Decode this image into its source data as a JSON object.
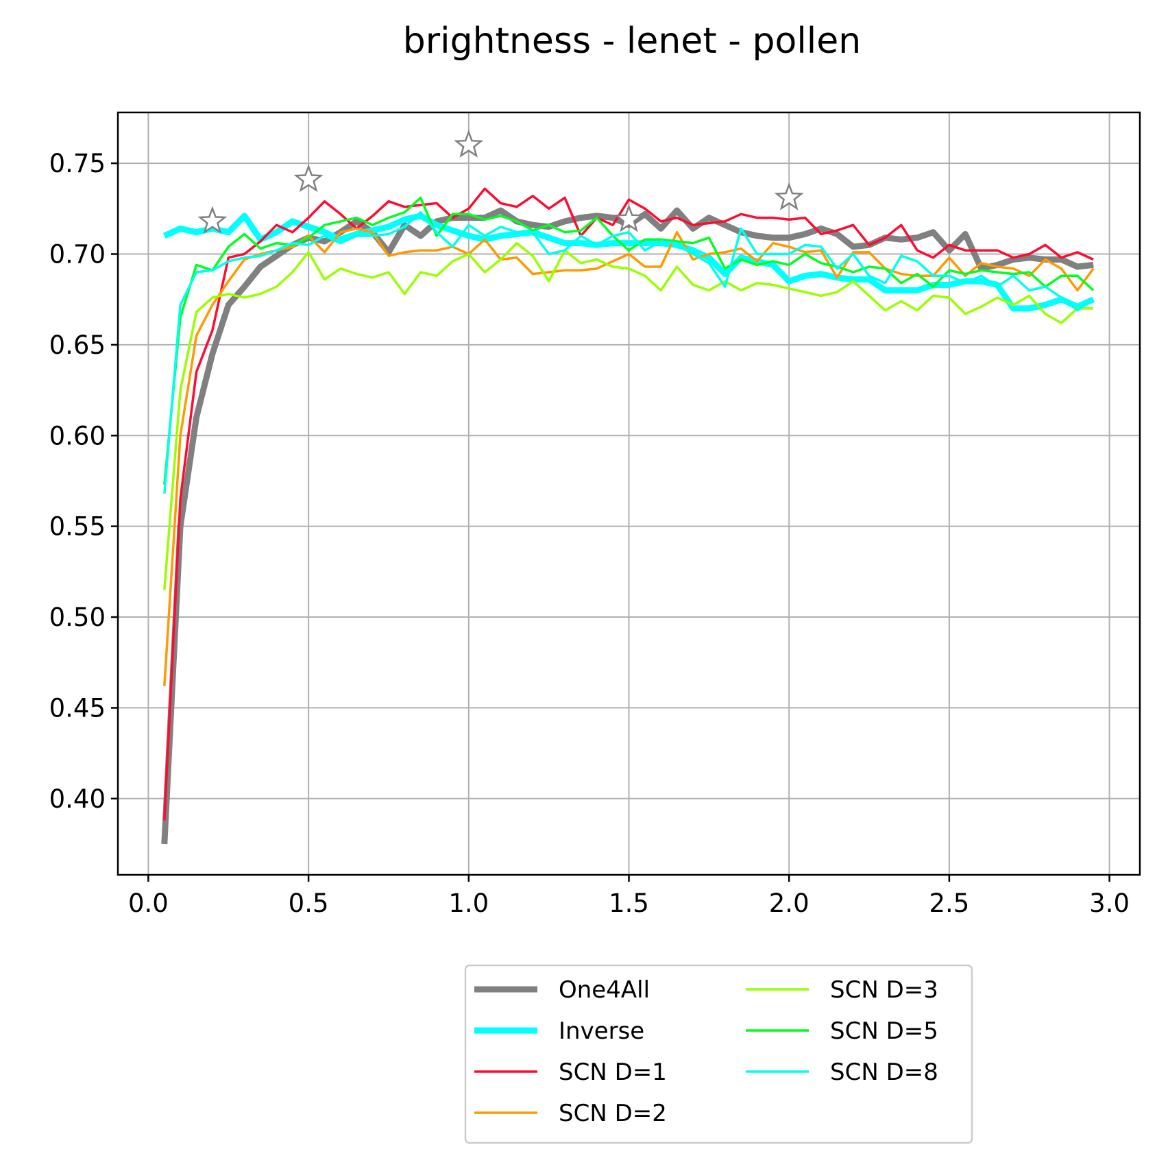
{
  "chart_data": {
    "type": "line",
    "title": "brightness - lenet - pollen",
    "xlabel": "",
    "ylabel": "",
    "xlim": [
      -0.095,
      3.095
    ],
    "ylim": [
      0.358,
      0.778
    ],
    "xticks": [
      0.0,
      0.5,
      1.0,
      1.5,
      2.0,
      2.5,
      3.0
    ],
    "yticks": [
      0.4,
      0.45,
      0.5,
      0.55,
      0.6,
      0.65,
      0.7,
      0.75
    ],
    "x": [
      0.05,
      0.1,
      0.15,
      0.2,
      0.25,
      0.3,
      0.35,
      0.4,
      0.45,
      0.5,
      0.55,
      0.6,
      0.65,
      0.7,
      0.75,
      0.8,
      0.85,
      0.9,
      0.95,
      1.0,
      1.05,
      1.1,
      1.15,
      1.2,
      1.25,
      1.3,
      1.35,
      1.4,
      1.45,
      1.5,
      1.55,
      1.6,
      1.65,
      1.7,
      1.75,
      1.8,
      1.85,
      1.9,
      1.95,
      2.0,
      2.05,
      2.1,
      2.15,
      2.2,
      2.25,
      2.3,
      2.35,
      2.4,
      2.45,
      2.5,
      2.55,
      2.6,
      2.65,
      2.7,
      2.75,
      2.8,
      2.85,
      2.9,
      2.95
    ],
    "grid": true,
    "legend_position": "bottom-center",
    "series": [
      {
        "name": "One4All",
        "color": "#808080",
        "width": 9,
        "values": [
          0.375,
          0.55,
          0.61,
          0.645,
          0.672,
          0.682,
          0.693,
          0.699,
          0.705,
          0.709,
          0.707,
          0.712,
          0.718,
          0.712,
          0.701,
          0.716,
          0.71,
          0.718,
          0.72,
          0.72,
          0.72,
          0.724,
          0.718,
          0.716,
          0.715,
          0.718,
          0.72,
          0.721,
          0.72,
          0.716,
          0.722,
          0.714,
          0.724,
          0.714,
          0.72,
          0.716,
          0.712,
          0.71,
          0.709,
          0.709,
          0.711,
          0.714,
          0.711,
          0.704,
          0.705,
          0.709,
          0.708,
          0.709,
          0.712,
          0.702,
          0.711,
          0.692,
          0.694,
          0.697,
          0.698,
          0.697,
          0.697,
          0.693,
          0.694
        ]
      },
      {
        "name": "Inverse",
        "color": "#00ffff",
        "width": 9,
        "values": [
          0.71,
          0.714,
          0.712,
          0.714,
          0.712,
          0.721,
          0.708,
          0.712,
          0.718,
          0.715,
          0.712,
          0.708,
          0.711,
          0.713,
          0.715,
          0.719,
          0.721,
          0.716,
          0.713,
          0.71,
          0.708,
          0.71,
          0.711,
          0.712,
          0.709,
          0.706,
          0.706,
          0.705,
          0.706,
          0.706,
          0.706,
          0.706,
          0.705,
          0.702,
          0.698,
          0.689,
          0.698,
          0.696,
          0.694,
          0.685,
          0.688,
          0.689,
          0.687,
          0.686,
          0.686,
          0.68,
          0.68,
          0.68,
          0.683,
          0.683,
          0.685,
          0.685,
          0.683,
          0.67,
          0.67,
          0.672,
          0.675,
          0.671,
          0.675
        ]
      },
      {
        "name": "SCN D=1",
        "color": "#ff0a30",
        "width": 3.5,
        "values": [
          0.388,
          0.565,
          0.635,
          0.658,
          0.698,
          0.7,
          0.707,
          0.716,
          0.712,
          0.72,
          0.729,
          0.722,
          0.714,
          0.721,
          0.729,
          0.726,
          0.727,
          0.728,
          0.72,
          0.725,
          0.736,
          0.728,
          0.726,
          0.732,
          0.725,
          0.731,
          0.71,
          0.72,
          0.716,
          0.73,
          0.725,
          0.718,
          0.72,
          0.716,
          0.717,
          0.718,
          0.722,
          0.72,
          0.72,
          0.719,
          0.72,
          0.711,
          0.713,
          0.716,
          0.705,
          0.709,
          0.716,
          0.702,
          0.698,
          0.705,
          0.702,
          0.702,
          0.702,
          0.698,
          0.7,
          0.705,
          0.698,
          0.701,
          0.697
        ]
      },
      {
        "name": "SCN D=2",
        "color": "#ff9900",
        "width": 3.5,
        "values": [
          0.462,
          0.6,
          0.655,
          0.672,
          0.685,
          0.697,
          0.7,
          0.702,
          0.704,
          0.71,
          0.701,
          0.712,
          0.714,
          0.712,
          0.699,
          0.701,
          0.702,
          0.702,
          0.704,
          0.7,
          0.708,
          0.697,
          0.698,
          0.689,
          0.69,
          0.691,
          0.691,
          0.692,
          0.696,
          0.7,
          0.693,
          0.693,
          0.712,
          0.697,
          0.7,
          0.701,
          0.703,
          0.696,
          0.706,
          0.704,
          0.701,
          0.702,
          0.687,
          0.701,
          0.701,
          0.692,
          0.689,
          0.688,
          0.688,
          0.698,
          0.688,
          0.695,
          0.693,
          0.692,
          0.688,
          0.697,
          0.692,
          0.68,
          0.692
        ]
      },
      {
        "name": "SCN D=3",
        "color": "#99ff00",
        "width": 3.5,
        "values": [
          0.515,
          0.625,
          0.668,
          0.676,
          0.678,
          0.676,
          0.678,
          0.682,
          0.69,
          0.701,
          0.686,
          0.692,
          0.689,
          0.687,
          0.69,
          0.678,
          0.69,
          0.688,
          0.696,
          0.7,
          0.69,
          0.697,
          0.706,
          0.699,
          0.685,
          0.702,
          0.695,
          0.697,
          0.693,
          0.692,
          0.688,
          0.68,
          0.693,
          0.683,
          0.68,
          0.685,
          0.68,
          0.684,
          0.683,
          0.681,
          0.679,
          0.677,
          0.679,
          0.685,
          0.677,
          0.669,
          0.674,
          0.669,
          0.677,
          0.676,
          0.667,
          0.671,
          0.676,
          0.672,
          0.677,
          0.667,
          0.662,
          0.67,
          0.67
        ]
      },
      {
        "name": "SCN D=5",
        "color": "#00ff22",
        "width": 3.5,
        "values": [
          0.573,
          0.665,
          0.694,
          0.691,
          0.704,
          0.711,
          0.703,
          0.706,
          0.705,
          0.709,
          0.716,
          0.718,
          0.72,
          0.716,
          0.72,
          0.723,
          0.731,
          0.71,
          0.722,
          0.722,
          0.719,
          0.721,
          0.718,
          0.713,
          0.716,
          0.712,
          0.713,
          0.72,
          0.71,
          0.702,
          0.708,
          0.708,
          0.707,
          0.706,
          0.709,
          0.692,
          0.697,
          0.694,
          0.696,
          0.694,
          0.7,
          0.695,
          0.693,
          0.69,
          0.693,
          0.692,
          0.684,
          0.689,
          0.682,
          0.691,
          0.689,
          0.691,
          0.69,
          0.689,
          0.69,
          0.682,
          0.688,
          0.688,
          0.68
        ]
      },
      {
        "name": "SCN D=8",
        "color": "#00ffee",
        "width": 3.5,
        "values": [
          0.568,
          0.672,
          0.69,
          0.691,
          0.696,
          0.698,
          0.699,
          0.702,
          0.706,
          0.705,
          0.71,
          0.706,
          0.71,
          0.71,
          0.711,
          0.715,
          0.723,
          0.712,
          0.704,
          0.716,
          0.71,
          0.715,
          0.712,
          0.712,
          0.7,
          0.702,
          0.71,
          0.705,
          0.71,
          0.712,
          0.702,
          0.707,
          0.706,
          0.7,
          0.695,
          0.682,
          0.714,
          0.7,
          0.7,
          0.7,
          0.705,
          0.704,
          0.692,
          0.7,
          0.688,
          0.684,
          0.699,
          0.696,
          0.688,
          0.688,
          0.684,
          0.688,
          0.682,
          0.688,
          0.68,
          0.682,
          0.676,
          0.669,
          0.675
        ]
      }
    ],
    "markers": {
      "symbol": "star",
      "color": "#808080",
      "points": [
        {
          "x": 0.2,
          "y": 0.718
        },
        {
          "x": 0.5,
          "y": 0.741
        },
        {
          "x": 1.0,
          "y": 0.76
        },
        {
          "x": 1.5,
          "y": 0.719
        },
        {
          "x": 2.0,
          "y": 0.731
        }
      ]
    }
  }
}
